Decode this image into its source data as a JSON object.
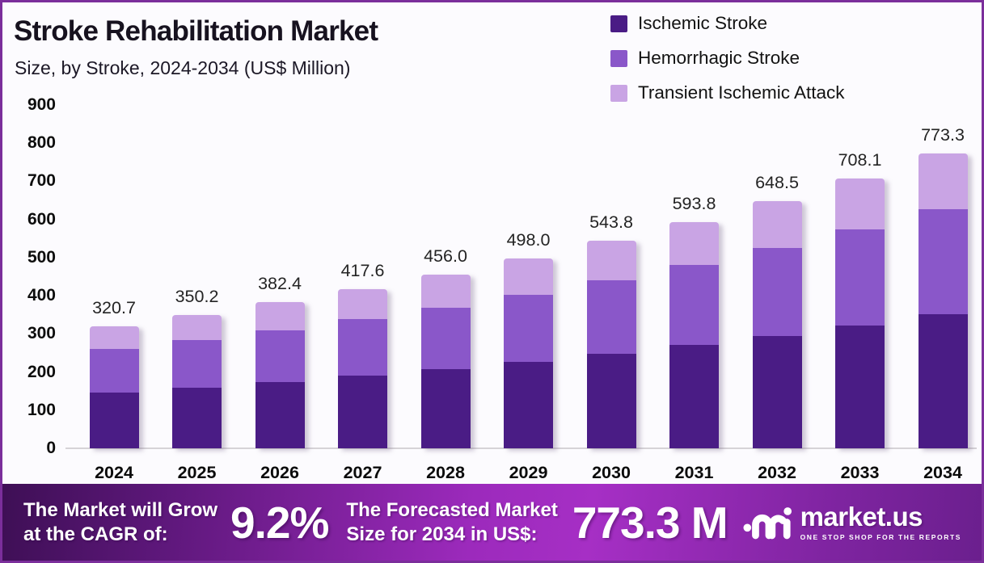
{
  "frame": {
    "border_color": "#7B2E9B",
    "background": "#FCFBFE"
  },
  "header": {
    "title": "Stroke Rehabilitation Market",
    "subtitle": "Size, by Stroke, 2024-2034 (US$ Million)"
  },
  "legend": {
    "items": [
      {
        "label": "Ischemic Stroke",
        "color": "#4A1C85"
      },
      {
        "label": "Hemorrhagic Stroke",
        "color": "#8A57C9"
      },
      {
        "label": "Transient Ischemic Attack",
        "color": "#C9A4E4"
      }
    ]
  },
  "chart_data": {
    "type": "bar",
    "stacked": true,
    "title": "Stroke Rehabilitation Market Size, by Stroke, 2024-2034 (US$ Million)",
    "categories": [
      "2024",
      "2025",
      "2026",
      "2027",
      "2028",
      "2029",
      "2030",
      "2031",
      "2032",
      "2033",
      "2034"
    ],
    "totals": [
      320.7,
      350.2,
      382.4,
      417.6,
      456.0,
      498.0,
      543.8,
      593.8,
      648.5,
      708.1,
      773.3
    ],
    "total_labels": [
      "320.7",
      "350.2",
      "382.4",
      "417.6",
      "456.0",
      "498.0",
      "543.8",
      "593.8",
      "648.5",
      "708.1",
      "773.3"
    ],
    "series": [
      {
        "name": "Ischemic Stroke",
        "color": "#4A1C85",
        "values": [
          145.9,
          159.3,
          174.0,
          190.0,
          207.5,
          226.6,
          247.4,
          270.2,
          295.1,
          322.2,
          351.9
        ]
      },
      {
        "name": "Hemorrhagic Stroke",
        "color": "#8A57C9",
        "values": [
          113.8,
          124.3,
          135.8,
          148.2,
          161.9,
          176.8,
          193.0,
          210.8,
          230.2,
          251.4,
          274.5
        ]
      },
      {
        "name": "Transient Ischemic Attack",
        "color": "#C9A4E4",
        "values": [
          61.0,
          66.6,
          72.6,
          79.4,
          86.6,
          94.6,
          103.4,
          112.8,
          123.2,
          134.5,
          146.9
        ]
      }
    ],
    "xlabel": "",
    "ylabel": "US$ Million",
    "ylim": [
      0,
      900
    ],
    "yticks": [
      0,
      100,
      200,
      300,
      400,
      500,
      600,
      700,
      800,
      900
    ],
    "grid": false,
    "legend_position": "top-right"
  },
  "banner": {
    "cagr_label_line1": "The Market will Grow",
    "cagr_label_line2": "at the CAGR of:",
    "cagr_value": "9.2%",
    "forecast_label_line1": "The Forecasted Market",
    "forecast_label_line2": "Size for 2034 in US$:",
    "forecast_value": "773.3 M",
    "gradient": [
      "#3E0F55",
      "#A62FC5",
      "#6B1F8E"
    ]
  },
  "logo": {
    "wordmark": "market.us",
    "tagline": "ONE STOP SHOP FOR THE REPORTS",
    "icon": "marketus-swirl-icon"
  }
}
